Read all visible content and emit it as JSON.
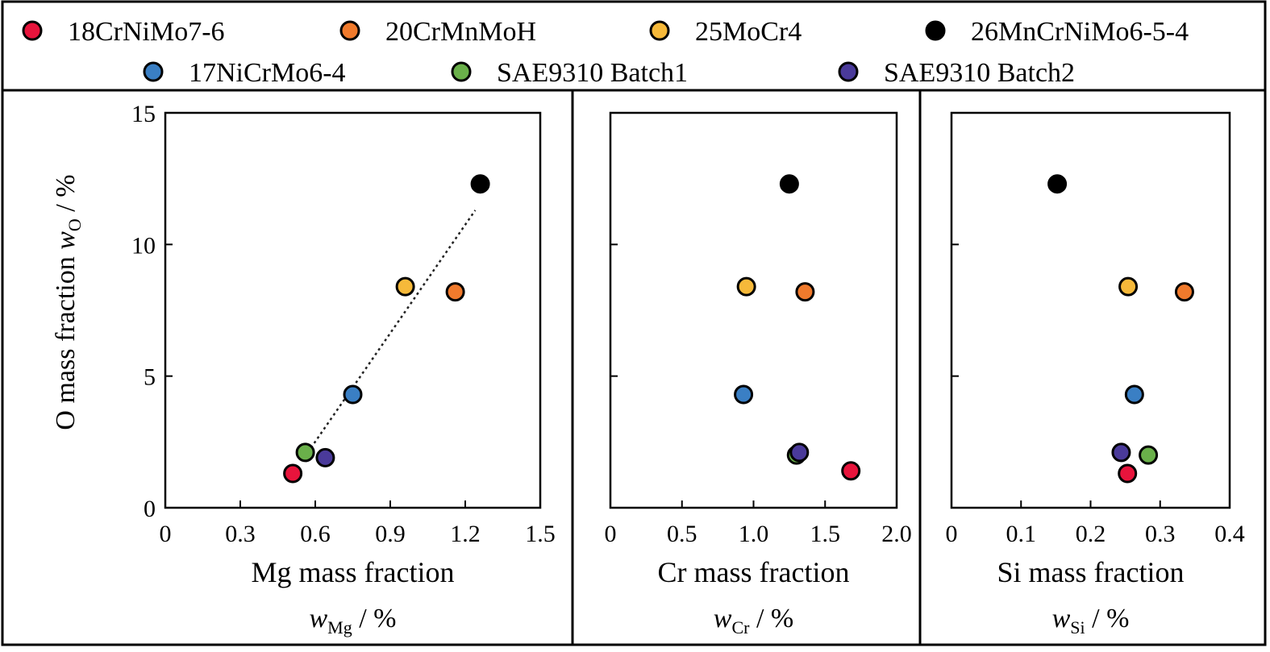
{
  "legend": [
    {
      "name": "18CrNiMo7-6",
      "color": "#e8143c"
    },
    {
      "name": "20CrMnMoH",
      "color": "#f07a2c"
    },
    {
      "name": "25MoCr4",
      "color": "#f6b93a"
    },
    {
      "name": "26MnCrNiMo6-5-4",
      "color": "#000000"
    },
    {
      "name": "17NiCrMo6-4",
      "color": "#3a7fc4"
    },
    {
      "name": "SAE9310 Batch1",
      "color": "#6ab04a"
    },
    {
      "name": "SAE9310 Batch2",
      "color": "#4a3a9a"
    }
  ],
  "chart_data": [
    {
      "type": "scatter",
      "xlabel": "Mg mass fraction",
      "xunit_var": "w",
      "xunit_sub": "Mg",
      "xunit_tail": " / %",
      "ylabel_prefix": "O mass fraction ",
      "ylabel_var": "w",
      "ylabel_sub": "O",
      "ylabel_tail": " / %",
      "xlim": [
        0,
        1.5
      ],
      "ylim": [
        0,
        15
      ],
      "xticks": [
        "0",
        "0.3",
        "0.6",
        "0.9",
        "1.2",
        "1.5"
      ],
      "yticks": [
        "0",
        "5",
        "10",
        "15"
      ],
      "trendline": {
        "x": [
          0.57,
          1.24
        ],
        "y": [
          2.1,
          11.3
        ]
      },
      "points": [
        {
          "series": "18CrNiMo7-6",
          "x": 0.51,
          "y": 1.3
        },
        {
          "series": "20CrMnMoH",
          "x": 1.16,
          "y": 8.2
        },
        {
          "series": "25MoCr4",
          "x": 0.96,
          "y": 8.4
        },
        {
          "series": "26MnCrNiMo6-5-4",
          "x": 1.26,
          "y": 12.3
        },
        {
          "series": "17NiCrMo6-4",
          "x": 0.75,
          "y": 4.3
        },
        {
          "series": "SAE9310 Batch1",
          "x": 0.56,
          "y": 2.1
        },
        {
          "series": "SAE9310 Batch2",
          "x": 0.64,
          "y": 1.9
        }
      ]
    },
    {
      "type": "scatter",
      "xlabel": "Cr mass fraction",
      "xunit_var": "w",
      "xunit_sub": "Cr",
      "xunit_tail": " / %",
      "xlim": [
        0,
        2.0
      ],
      "ylim": [
        0,
        15
      ],
      "xticks": [
        "0",
        "0.5",
        "1.0",
        "1.5",
        "2.0"
      ],
      "points": [
        {
          "series": "18CrNiMo7-6",
          "x": 1.68,
          "y": 1.4
        },
        {
          "series": "20CrMnMoH",
          "x": 1.36,
          "y": 8.2
        },
        {
          "series": "25MoCr4",
          "x": 0.95,
          "y": 8.4
        },
        {
          "series": "26MnCrNiMo6-5-4",
          "x": 1.25,
          "y": 12.3
        },
        {
          "series": "17NiCrMo6-4",
          "x": 0.93,
          "y": 4.3
        },
        {
          "series": "SAE9310 Batch1",
          "x": 1.3,
          "y": 2.0
        },
        {
          "series": "SAE9310 Batch2",
          "x": 1.32,
          "y": 2.1
        }
      ]
    },
    {
      "type": "scatter",
      "xlabel": "Si mass fraction",
      "xunit_var": "w",
      "xunit_sub": "Si",
      "xunit_tail": " / %",
      "xlim": [
        0,
        0.4
      ],
      "ylim": [
        0,
        15
      ],
      "xticks": [
        "0",
        "0.1",
        "0.2",
        "0.3",
        "0.4"
      ],
      "points": [
        {
          "series": "18CrNiMo7-6",
          "x": 0.253,
          "y": 1.3
        },
        {
          "series": "20CrMnMoH",
          "x": 0.335,
          "y": 8.2
        },
        {
          "series": "25MoCr4",
          "x": 0.254,
          "y": 8.4
        },
        {
          "series": "26MnCrNiMo6-5-4",
          "x": 0.152,
          "y": 12.3
        },
        {
          "series": "17NiCrMo6-4",
          "x": 0.263,
          "y": 4.3
        },
        {
          "series": "SAE9310 Batch1",
          "x": 0.283,
          "y": 2.0
        },
        {
          "series": "SAE9310 Batch2",
          "x": 0.244,
          "y": 2.1
        }
      ]
    }
  ]
}
